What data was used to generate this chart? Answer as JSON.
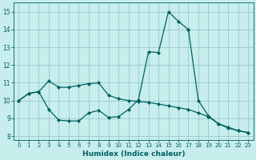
{
  "xlabel": "Humidex (Indice chaleur)",
  "bg_color": "#c8eded",
  "grid_color": "#96c8c8",
  "line_color": "#006060",
  "xlim": [
    -0.5,
    23.5
  ],
  "ylim": [
    7.8,
    15.5
  ],
  "yticks": [
    8,
    9,
    10,
    11,
    12,
    13,
    14,
    15
  ],
  "xticks": [
    0,
    1,
    2,
    3,
    4,
    5,
    6,
    7,
    8,
    9,
    10,
    11,
    12,
    13,
    14,
    15,
    16,
    17,
    18,
    19,
    20,
    21,
    22,
    23
  ],
  "line1_x": [
    0,
    1,
    2,
    3,
    4,
    5,
    6,
    7,
    8,
    9,
    10,
    11,
    12,
    13,
    14,
    15,
    16,
    17,
    18,
    19,
    20,
    21,
    22,
    23
  ],
  "line1_y": [
    10.0,
    10.4,
    10.5,
    11.1,
    10.75,
    10.75,
    10.85,
    10.95,
    11.0,
    10.3,
    10.1,
    10.0,
    9.95,
    9.9,
    9.8,
    9.7,
    9.6,
    9.5,
    9.3,
    9.1,
    8.7,
    8.5,
    8.3,
    8.2
  ],
  "line2_x": [
    0,
    1,
    2,
    3,
    4,
    5,
    6,
    7,
    8,
    9,
    10,
    11,
    12,
    13,
    14,
    15,
    16,
    17
  ],
  "line2_y": [
    10.0,
    10.4,
    10.5,
    9.5,
    8.9,
    8.85,
    8.85,
    9.3,
    9.45,
    9.05,
    9.1,
    9.5,
    10.05,
    12.75,
    12.7,
    15.0,
    14.45,
    14.0
  ],
  "line3_x": [
    17,
    18,
    19,
    20,
    21,
    22,
    23
  ],
  "line3_y": [
    14.0,
    10.0,
    9.15,
    8.7,
    8.45,
    8.3,
    8.2
  ]
}
